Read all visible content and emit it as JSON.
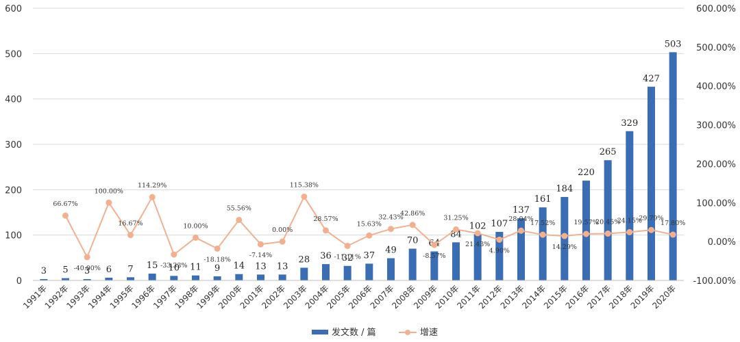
{
  "chart_data": {
    "type": "bar+line",
    "categories": [
      "1991年",
      "1992年",
      "1993年",
      "1994年",
      "1995年",
      "1996年",
      "1997年",
      "1998年",
      "1999年",
      "2000年",
      "2001年",
      "2002年",
      "2003年",
      "2004年",
      "2005年",
      "2006年",
      "2007年",
      "2008年",
      "2009年",
      "2010年",
      "2011年",
      "2012年",
      "2013年",
      "2014年",
      "2015年",
      "2016年",
      "2017年",
      "2018年",
      "2019年",
      "2020年"
    ],
    "series": [
      {
        "name": "发文数 / 篇",
        "type": "bar",
        "axis": "left",
        "color": "#3b6db4",
        "values": [
          3,
          5,
          3,
          6,
          7,
          15,
          10,
          11,
          9,
          14,
          13,
          13,
          28,
          36,
          32,
          37,
          49,
          70,
          64,
          84,
          102,
          107,
          137,
          161,
          184,
          220,
          265,
          329,
          427,
          503
        ],
        "labels": [
          "3",
          "5",
          "3",
          "6",
          "7",
          "15",
          "10",
          "11",
          "9",
          "14",
          "13",
          "13",
          "28",
          "36",
          "32",
          "37",
          "49",
          "70",
          "64",
          "84",
          "102",
          "107",
          "137",
          "161",
          "184",
          "220",
          "265",
          "329",
          "427",
          "503"
        ]
      },
      {
        "name": "增速",
        "type": "line",
        "axis": "right",
        "color": "#f2b08f",
        "values": [
          null,
          66.67,
          -40.0,
          100.0,
          16.67,
          114.29,
          -33.33,
          10.0,
          -18.18,
          55.56,
          -7.14,
          0.0,
          115.38,
          28.57,
          -11.11,
          15.63,
          32.43,
          42.86,
          -8.57,
          31.25,
          21.43,
          4.9,
          28.04,
          17.52,
          14.29,
          19.57,
          20.45,
          24.15,
          29.79,
          17.8
        ],
        "labels": [
          null,
          "66.67%",
          "-40.00%",
          "100.00%",
          "16.67%",
          "114.29%",
          "-33.33%",
          "10.00%",
          "-18.18%",
          "55.56%",
          "-7.14%",
          "0.00%",
          "115.38%",
          "28.57%",
          "-11.11%",
          "15.63%",
          "32.43%",
          "42.86%",
          "-8.57%",
          "31.25%",
          "21.43%",
          "4.90%",
          "28.04%",
          "17.52%",
          "14.29%",
          "19.57%",
          "20.45%",
          "24.15%",
          "29.79%",
          "17.80%"
        ]
      }
    ],
    "left_axis": {
      "min": 0,
      "max": 600,
      "ticks": [
        "0",
        "100",
        "200",
        "300",
        "400",
        "500",
        "600"
      ]
    },
    "right_axis": {
      "min": -100,
      "max": 600,
      "ticks": [
        "-100.00%",
        "0.00%",
        "100.00%",
        "200.00%",
        "300.00%",
        "400.00%",
        "500.00%",
        "600.00%"
      ]
    },
    "grid": true,
    "legend": "bottom-center"
  }
}
